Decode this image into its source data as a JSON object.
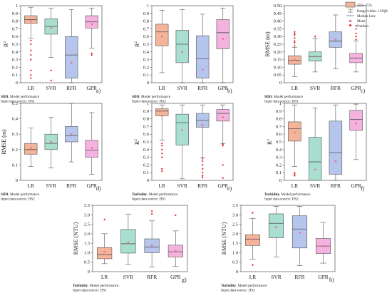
{
  "figure": {
    "legend": {
      "box_label": "25%~75%",
      "whisker_label": "Range within 1.5IQR",
      "median_label": "Median Line",
      "mean_label": "Mean",
      "outlier_label": "Outliers"
    }
  },
  "colors": {
    "LR": "#f4b49a",
    "SVR": "#a8dfd0",
    "RFR": "#b5c5ec",
    "GPR": "#f4b3df",
    "outlier": "#d9262c",
    "mean": "#f06f86",
    "frame": "#555555"
  },
  "chart_data": [
    {
      "type": "box",
      "panel": "a)",
      "ylabel": "R²",
      "ylim": [
        0,
        1.0
      ],
      "yticks": [
        0,
        0.1,
        0.2,
        0.3,
        0.4,
        0.5,
        0.6,
        0.7,
        0.8,
        0.9,
        1.0
      ],
      "ytick_labels": [
        "0",
        "0.1",
        "0.2",
        "0.3",
        "0.4",
        "0.5",
        "0.6",
        "0.7",
        "0.8",
        "0.9",
        "1"
      ],
      "categories": [
        "LR",
        "SVR",
        "RFR",
        "GPR"
      ],
      "caption": "SDD. Model performance",
      "caption_bold": "SDD.",
      "caption_rest": " Model performance",
      "source": "Input data source: DS1",
      "boxes": [
        {
          "whislo": 0.58,
          "q1": 0.77,
          "med": 0.82,
          "q3": 0.87,
          "whishi": 0.98,
          "mean": 0.8,
          "fliers": [
            0.55,
            0.5,
            0.42,
            0.36,
            0.3,
            0.16,
            0.1,
            0.06
          ]
        },
        {
          "whislo": 0.33,
          "q1": 0.63,
          "med": 0.73,
          "q3": 0.83,
          "whishi": 0.97,
          "mean": 0.71,
          "fliers": [
            0.16,
            0.03
          ]
        },
        {
          "whislo": 0.0,
          "q1": 0.06,
          "med": 0.36,
          "q3": 0.6,
          "whishi": 0.95,
          "mean": 0.26,
          "fliers": []
        },
        {
          "whislo": 0.45,
          "q1": 0.71,
          "med": 0.79,
          "q3": 0.87,
          "whishi": 0.97,
          "mean": 0.76,
          "fliers": [
            0.38,
            0.36
          ]
        }
      ]
    },
    {
      "type": "box",
      "panel": "b)",
      "ylabel": "R²",
      "ylim": [
        0,
        1.0
      ],
      "yticks": [
        0,
        0.1,
        0.2,
        0.3,
        0.4,
        0.5,
        0.6,
        0.7,
        0.8,
        0.9,
        1.0
      ],
      "ytick_labels": [
        "0",
        "0.1",
        "0.2",
        "0.3",
        "0.4",
        "0.5",
        "0.6",
        "0.7",
        "0.8",
        "0.9",
        "1"
      ],
      "categories": [
        "LR",
        "SVR",
        "RFR",
        "GPR"
      ],
      "caption": "SDD. Model performance",
      "caption_bold": "SDD.",
      "caption_rest": " Model performance",
      "source": "Input data source: DS2",
      "boxes": [
        {
          "whislo": 0.13,
          "q1": 0.48,
          "med": 0.66,
          "q3": 0.76,
          "whishi": 0.94,
          "mean": 0.6,
          "fliers": []
        },
        {
          "whislo": 0.0,
          "q1": 0.26,
          "med": 0.5,
          "q3": 0.68,
          "whishi": 0.95,
          "mean": 0.4,
          "fliers": []
        },
        {
          "whislo": 0.0,
          "q1": 0.06,
          "med": 0.31,
          "q3": 0.61,
          "whishi": 0.89,
          "mean": 0.17,
          "fliers": []
        },
        {
          "whislo": 0.0,
          "q1": 0.44,
          "med": 0.65,
          "q3": 0.82,
          "whishi": 0.97,
          "mean": 0.57,
          "fliers": []
        }
      ]
    },
    {
      "type": "box",
      "panel": "c)",
      "ylabel": "RMSE (m)",
      "ylim": [
        0,
        0.5
      ],
      "yticks": [
        0,
        0.05,
        0.1,
        0.15,
        0.2,
        0.25,
        0.3,
        0.35,
        0.4,
        0.45,
        0.5
      ],
      "ytick_labels": [
        "0",
        "0.05",
        "0.10",
        "0.15",
        "0.20",
        "0.25",
        "0.30",
        "0.35",
        "0.40",
        "0.45",
        "0.50"
      ],
      "categories": [
        "LR",
        "SVR",
        "RFR",
        "GPR"
      ],
      "caption": "SDD. Model performance",
      "caption_bold": "SDD.",
      "caption_rest": " Model performance",
      "source": "Input data source: DS1",
      "boxes": [
        {
          "whislo": 0.04,
          "q1": 0.12,
          "med": 0.145,
          "q3": 0.175,
          "whishi": 0.23,
          "mean": 0.15,
          "fliers": [
            0.24,
            0.26,
            0.27,
            0.29,
            0.31,
            0.32,
            0.33
          ]
        },
        {
          "whislo": 0.07,
          "q1": 0.14,
          "med": 0.17,
          "q3": 0.2,
          "whishi": 0.29,
          "mean": 0.17,
          "fliers": [
            0.3
          ]
        },
        {
          "whislo": 0.09,
          "q1": 0.23,
          "med": 0.27,
          "q3": 0.33,
          "whishi": 0.44,
          "mean": 0.28,
          "fliers": []
        },
        {
          "whislo": 0.07,
          "q1": 0.13,
          "med": 0.16,
          "q3": 0.19,
          "whishi": 0.27,
          "mean": 0.16,
          "fliers": [
            0.28,
            0.3,
            0.32,
            0.35,
            0.37
          ]
        }
      ]
    },
    {
      "type": "box",
      "panel": "d)",
      "ylabel": "RMSE (m)",
      "ylim": [
        0,
        0.5
      ],
      "yticks": [
        0,
        0.1,
        0.2,
        0.3,
        0.4,
        0.5
      ],
      "ytick_labels": [
        "0",
        "0.1",
        "0.2",
        "0.3",
        "0.4",
        "0.5"
      ],
      "categories": [
        "LR",
        "SVR",
        "RFR",
        "GPR"
      ],
      "caption": "SDD. Model performance",
      "caption_bold": "SDD.",
      "caption_rest": " Model performance",
      "source": "Input data source: DS2",
      "boxes": [
        {
          "whislo": 0.09,
          "q1": 0.17,
          "med": 0.2,
          "q3": 0.24,
          "whishi": 0.34,
          "mean": 0.21,
          "fliers": []
        },
        {
          "whislo": 0.08,
          "q1": 0.2,
          "med": 0.24,
          "q3": 0.3,
          "whishi": 0.41,
          "mean": 0.25,
          "fliers": []
        },
        {
          "whislo": 0.12,
          "q1": 0.25,
          "med": 0.29,
          "q3": 0.35,
          "whishi": 0.5,
          "mean": 0.3,
          "fliers": []
        },
        {
          "whislo": 0.04,
          "q1": 0.15,
          "med": 0.195,
          "q3": 0.26,
          "whishi": 0.44,
          "mean": 0.21,
          "fliers": []
        }
      ]
    },
    {
      "type": "box",
      "panel": "e)",
      "ylabel": "R²",
      "ylim": [
        0,
        1.0
      ],
      "yticks": [
        0,
        0.1,
        0.2,
        0.3,
        0.4,
        0.5,
        0.6,
        0.7,
        0.8,
        0.9,
        1.0
      ],
      "ytick_labels": [
        "0",
        "0.1",
        "0.2",
        "0.3",
        "0.4",
        "0.5",
        "0.6",
        "0.7",
        "0.8",
        "0.9",
        "1"
      ],
      "categories": [
        "LR",
        "SVR",
        "RFR",
        "GPR"
      ],
      "caption": "Turbidity. Model performance",
      "caption_bold": "Turbidity.",
      "caption_rest": " Model performance",
      "source": "Input data source: DS1",
      "boxes": [
        {
          "whislo": 0.52,
          "q1": 0.84,
          "med": 0.9,
          "q3": 0.93,
          "whishi": 0.98,
          "mean": 0.84,
          "fliers": [
            0.48,
            0.45,
            0.4,
            0.35,
            0.3,
            0.15,
            0.12
          ]
        },
        {
          "whislo": 0.02,
          "q1": 0.46,
          "med": 0.75,
          "q3": 0.86,
          "whishi": 0.98,
          "mean": 0.65,
          "fliers": []
        },
        {
          "whislo": 0.3,
          "q1": 0.69,
          "med": 0.78,
          "q3": 0.87,
          "whishi": 0.98,
          "mean": 0.72,
          "fliers": [
            0.28,
            0.25,
            0.2,
            0.15,
            0.1,
            0.06,
            0.04
          ]
        },
        {
          "whislo": 0.48,
          "q1": 0.77,
          "med": 0.87,
          "q3": 0.92,
          "whishi": 0.98,
          "mean": 0.82,
          "fliers": [
            0.47,
            0.45,
            0.2,
            0.03
          ]
        }
      ]
    },
    {
      "type": "box",
      "panel": "f)",
      "ylabel": "R²",
      "ylim": [
        0,
        1.0
      ],
      "yticks": [
        0,
        0.1,
        0.2,
        0.3,
        0.4,
        0.5,
        0.6,
        0.7,
        0.8,
        0.9,
        1.0
      ],
      "ytick_labels": [
        "0",
        "0.1",
        "0.2",
        "0.3",
        "0.4",
        "0.5",
        "0.6",
        "0.7",
        "0.8",
        "0.9",
        "1"
      ],
      "categories": [
        "LR",
        "SVR",
        "RFR",
        "GPR"
      ],
      "caption": "Turbidity. Model performance",
      "caption_bold": "Turbidity.",
      "caption_rest": " Model performance",
      "source": "Input data source: DS2",
      "boxes": [
        {
          "whislo": 0.18,
          "q1": 0.51,
          "med": 0.67,
          "q3": 0.76,
          "whishi": 0.98,
          "mean": 0.62,
          "fliers": [
            0.1,
            0.08,
            0.06
          ]
        },
        {
          "whislo": 0.0,
          "q1": 0.0,
          "med": 0.24,
          "q3": 0.56,
          "whishi": 0.94,
          "mean": 0.14,
          "fliers": []
        },
        {
          "whislo": 0.0,
          "q1": 0.08,
          "med": 0.36,
          "q3": 0.77,
          "whishi": 0.98,
          "mean": 0.25,
          "fliers": []
        },
        {
          "whislo": 0.27,
          "q1": 0.65,
          "med": 0.79,
          "q3": 0.91,
          "whishi": 0.99,
          "mean": 0.74,
          "fliers": []
        }
      ]
    },
    {
      "type": "box",
      "panel": "g)",
      "ylabel": "RMSE (NTU)",
      "ylim": [
        0,
        3.5
      ],
      "yticks": [
        0,
        0.5,
        1.0,
        1.5,
        2.0,
        2.5,
        3.0,
        3.5
      ],
      "ytick_labels": [
        "0",
        "0.5",
        "1.0",
        "1.5",
        "2.0",
        "2.5",
        "3.0",
        "3.5"
      ],
      "categories": [
        "LR",
        "SVR",
        "RFR",
        "GPR"
      ],
      "caption": "Turbidity. Model performance",
      "caption_bold": "Turbidity.",
      "caption_rest": " Model performance",
      "source": "Input data source: DS1",
      "boxes": [
        {
          "whislo": 0.42,
          "q1": 0.68,
          "med": 0.9,
          "q3": 1.27,
          "whishi": 2.0,
          "mean": 1.05,
          "fliers": [
            2.75
          ]
        },
        {
          "whislo": 0.38,
          "q1": 0.98,
          "med": 1.47,
          "q3": 2.23,
          "whishi": 3.04,
          "mean": 1.55,
          "fliers": []
        },
        {
          "whislo": 0.25,
          "q1": 1.0,
          "med": 1.3,
          "q3": 1.73,
          "whishi": 2.68,
          "mean": 1.38,
          "fliers": [
            3.05,
            3.2
          ]
        },
        {
          "whislo": 0.28,
          "q1": 0.77,
          "med": 1.05,
          "q3": 1.4,
          "whishi": 2.15,
          "mean": 1.1,
          "fliers": [
            2.98
          ]
        }
      ]
    },
    {
      "type": "box",
      "panel": "h)",
      "ylabel": "RMSE (NTU)",
      "ylim": [
        0,
        3.5
      ],
      "yticks": [
        0,
        0.5,
        1.0,
        1.5,
        2.0,
        2.5,
        3.0,
        3.5
      ],
      "ytick_labels": [
        "0",
        "0.5",
        "1.0",
        "1.5",
        "2.0",
        "2.5",
        "3.0",
        "3.5"
      ],
      "categories": [
        "LR",
        "SVR",
        "RFR",
        "GPR"
      ],
      "caption": "Turbidity. Model performance",
      "caption_bold": "Turbidity.",
      "caption_rest": " Model performance",
      "source": "Input data source: DS2",
      "boxes": [
        {
          "whislo": 0.65,
          "q1": 1.38,
          "med": 1.72,
          "q3": 1.95,
          "whishi": 2.8,
          "mean": 1.7,
          "fliers": [
            0.35,
            3.1
          ]
        },
        {
          "whislo": 0.78,
          "q1": 1.78,
          "med": 2.55,
          "q3": 3.05,
          "whishi": 3.45,
          "mean": 2.35,
          "fliers": []
        },
        {
          "whislo": 0.32,
          "q1": 1.25,
          "med": 2.25,
          "q3": 2.95,
          "whishi": 3.45,
          "mean": 2.05,
          "fliers": []
        },
        {
          "whislo": 0.45,
          "q1": 0.95,
          "med": 1.35,
          "q3": 1.75,
          "whishi": 2.6,
          "mean": 1.35,
          "fliers": []
        }
      ]
    }
  ]
}
